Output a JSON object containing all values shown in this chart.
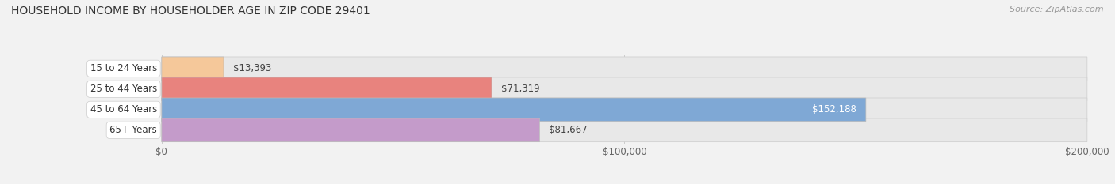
{
  "title": "HOUSEHOLD INCOME BY HOUSEHOLDER AGE IN ZIP CODE 29401",
  "source": "Source: ZipAtlas.com",
  "categories": [
    "15 to 24 Years",
    "25 to 44 Years",
    "45 to 64 Years",
    "65+ Years"
  ],
  "values": [
    13393,
    71319,
    152188,
    81667
  ],
  "bar_colors": [
    "#f5c89a",
    "#e8837e",
    "#7fa8d5",
    "#c49bca"
  ],
  "label_colors": [
    "#555555",
    "#555555",
    "#ffffff",
    "#555555"
  ],
  "xlim": [
    0,
    200000
  ],
  "xtick_values": [
    0,
    100000,
    200000
  ],
  "xtick_labels": [
    "$0",
    "$100,000",
    "$200,000"
  ],
  "background_color": "#f2f2f2",
  "bar_background_color": "#e8e8e8",
  "title_fontsize": 10,
  "source_fontsize": 8,
  "label_fontsize": 8.5,
  "category_fontsize": 8.5,
  "value_fontsize": 8.5,
  "bar_height": 0.6,
  "figsize": [
    14.06,
    2.33
  ],
  "dpi": 100
}
